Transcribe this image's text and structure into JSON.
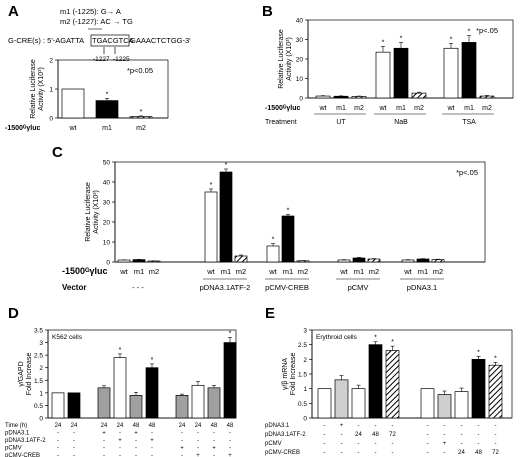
{
  "chart_data": [
    {
      "panel": "A",
      "type": "bar",
      "sequence": {
        "mut_m1": "m1 (-1225): G→ A",
        "mut_m2": "m2 (-1227): AC → TG",
        "seq_prefix": "G-CRE(s) : 5'-AGATTA",
        "seq_box": "TGACGTCA",
        "seq_suffix": "GAAACTCTGG-3'",
        "pos1": "-1227",
        "pos2": "-1225"
      },
      "ylabel": "Relative Luciferase\nActivity (X10³)",
      "ylim": [
        0,
        2
      ],
      "yticks": [
        0,
        1,
        2
      ],
      "sig": "*p<0.05",
      "row_label": "-1500ᴳγluc",
      "categories": [
        "wt",
        "m1",
        "m2"
      ],
      "values": [
        1.0,
        0.6,
        0.05
      ],
      "errors": [
        0,
        0.08,
        0.02
      ],
      "styles": [
        "white",
        "black",
        "hatch"
      ],
      "stars": [
        false,
        true,
        true
      ]
    },
    {
      "panel": "B",
      "type": "bar",
      "ylabel": "Relative Luciferase\nActivity (X10³)",
      "ylim": [
        0,
        40
      ],
      "yticks": [
        0,
        10,
        20,
        30,
        40
      ],
      "sig": "*p<.05",
      "row_label": "-1500ᴳγluc",
      "row2_label": "Treatment",
      "groups": [
        {
          "name": "UT",
          "categories": [
            "wt",
            "m1",
            "m2"
          ],
          "values": [
            1.0,
            0.9,
            0.8
          ],
          "errors": [
            0.2,
            0.2,
            0.2
          ],
          "stars": [
            false,
            false,
            false
          ]
        },
        {
          "name": "NaB",
          "categories": [
            "wt",
            "m1",
            "m2"
          ],
          "values": [
            23.5,
            25.5,
            2.5
          ],
          "errors": [
            3,
            3,
            0.5
          ],
          "stars": [
            true,
            true,
            false
          ]
        },
        {
          "name": "TSA",
          "categories": [
            "wt",
            "m1",
            "m2"
          ],
          "values": [
            25.5,
            28.5,
            1.0
          ],
          "errors": [
            2.5,
            3.5,
            0.3
          ],
          "stars": [
            true,
            true,
            false
          ]
        }
      ],
      "styles": [
        "white",
        "black",
        "hatch"
      ]
    },
    {
      "panel": "C",
      "type": "bar",
      "ylabel": "Relative Luciferase\nActivity (X10³)",
      "ylim": [
        0,
        50
      ],
      "yticks": [
        0,
        10,
        20,
        30,
        40,
        50
      ],
      "sig": "*p<.05",
      "row_label": "-1500ᴳγluc",
      "row2_label": "Vector",
      "groups": [
        {
          "name": "-   -   -",
          "categories": [
            "wt",
            "m1",
            "m2"
          ],
          "values": [
            1.0,
            1.2,
            0.5
          ],
          "errors": [
            0.1,
            0.1,
            0.1
          ],
          "stars": [
            false,
            false,
            false
          ]
        },
        {
          "name": "pDNA3.1ATF-2",
          "categories": [
            "wt",
            "m1",
            "m2"
          ],
          "values": [
            35,
            45,
            3
          ],
          "errors": [
            1.5,
            1.5,
            0.5
          ],
          "stars": [
            true,
            true,
            false
          ]
        },
        {
          "name": "pCMV-CREB",
          "categories": [
            "wt",
            "m1",
            "m2"
          ],
          "values": [
            8,
            23,
            0.6
          ],
          "errors": [
            1.2,
            0.8,
            0.1
          ],
          "stars": [
            true,
            true,
            false
          ]
        },
        {
          "name": "pCMV",
          "categories": [
            "wt",
            "m1",
            "m2"
          ],
          "values": [
            1.0,
            2.0,
            1.5
          ],
          "errors": [
            0.2,
            0.3,
            0.2
          ],
          "stars": [
            false,
            false,
            false
          ]
        },
        {
          "name": "pDNA3.1",
          "categories": [
            "wt",
            "m1",
            "m2"
          ],
          "values": [
            1.0,
            1.5,
            1.2
          ],
          "errors": [
            0.2,
            0.2,
            0.2
          ],
          "stars": [
            false,
            false,
            false
          ]
        }
      ],
      "styles": [
        "white",
        "black",
        "hatch"
      ]
    },
    {
      "panel": "D",
      "type": "bar",
      "ylabel": "γ/GAPD\nFold Increase",
      "ylim": [
        0,
        3.5
      ],
      "yticks": [
        0,
        0.5,
        1,
        1.5,
        2,
        2.5,
        3,
        3.5
      ],
      "inset": "K562 cells",
      "bars": [
        {
          "value": 1.0,
          "error": 0,
          "fill": "white",
          "star": false
        },
        {
          "value": 1.0,
          "error": 0,
          "fill": "black",
          "star": false
        },
        {
          "value": 1.2,
          "error": 0.08,
          "fill": "gray",
          "star": false
        },
        {
          "value": 2.4,
          "error": 0.15,
          "fill": "white",
          "star": true
        },
        {
          "value": 0.9,
          "error": 0.12,
          "fill": "gray",
          "star": false
        },
        {
          "value": 2.0,
          "error": 0.15,
          "fill": "black",
          "star": true
        },
        {
          "value": 0.9,
          "error": 0.05,
          "fill": "gray",
          "star": false
        },
        {
          "value": 1.3,
          "error": 0.15,
          "fill": "white",
          "star": false
        },
        {
          "value": 1.2,
          "error": 0.1,
          "fill": "gray",
          "star": false
        },
        {
          "value": 3.0,
          "error": 0.2,
          "fill": "black",
          "star": true
        }
      ],
      "bar_groups": [
        2,
        4,
        4
      ],
      "rows": [
        {
          "label": "Time (h)",
          "cells": [
            "24",
            "24",
            "24",
            "24",
            "48",
            "48",
            "24",
            "24",
            "48",
            "48"
          ]
        },
        {
          "label": "pDNA3.1",
          "cells": [
            "-",
            "-",
            "+",
            "-",
            "+",
            "-",
            "-",
            "-",
            "-",
            "-"
          ]
        },
        {
          "label": "pDNA3.1ATF-2",
          "cells": [
            "-",
            "-",
            "-",
            "+",
            "-",
            "+",
            "-",
            "-",
            "-",
            "-"
          ]
        },
        {
          "label": "pCMV",
          "cells": [
            "-",
            "-",
            "-",
            "-",
            "-",
            "-",
            "+",
            "-",
            "+",
            "-"
          ]
        },
        {
          "label": "pCMV-CREB",
          "cells": [
            "-",
            "-",
            "-",
            "-",
            "-",
            "-",
            "-",
            "+",
            "-",
            "+"
          ]
        }
      ]
    },
    {
      "panel": "E",
      "type": "bar",
      "ylabel": "γ/β mRNA\nFold Increase",
      "ylim": [
        0,
        3
      ],
      "yticks": [
        0,
        0.5,
        1,
        1.5,
        2,
        2.5,
        3
      ],
      "inset": "Erythroid cells",
      "bars": [
        {
          "value": 1.0,
          "error": 0,
          "fill": "white",
          "star": false
        },
        {
          "value": 1.3,
          "error": 0.15,
          "fill": "lightgray",
          "star": false
        },
        {
          "value": 1.0,
          "error": 0.12,
          "fill": "white",
          "star": false
        },
        {
          "value": 2.5,
          "error": 0.1,
          "fill": "black",
          "star": true
        },
        {
          "value": 2.3,
          "error": 0.15,
          "fill": "hatch",
          "star": true
        },
        {
          "value": 1.0,
          "error": 0,
          "fill": "white",
          "star": false
        },
        {
          "value": 0.8,
          "error": 0.12,
          "fill": "lightgray",
          "star": false
        },
        {
          "value": 0.9,
          "error": 0.12,
          "fill": "white",
          "star": false
        },
        {
          "value": 2.0,
          "error": 0.1,
          "fill": "black",
          "star": true
        },
        {
          "value": 1.8,
          "error": 0.1,
          "fill": "hatch",
          "star": true
        }
      ],
      "bar_groups": [
        5,
        5
      ],
      "rows": [
        {
          "label": "pDNA3.1",
          "cells": [
            "-",
            "+",
            "-",
            "-",
            "-",
            "-",
            "-",
            "-",
            "-",
            "-"
          ]
        },
        {
          "label": "pDNA3.1ATF-2",
          "cells": [
            "-",
            "-",
            "24",
            "48",
            "72",
            "-",
            "-",
            "-",
            "-",
            "-"
          ]
        },
        {
          "label": "pCMV",
          "cells": [
            "-",
            "-",
            "-",
            "-",
            "-",
            "-",
            "+",
            "-",
            "-",
            "-"
          ]
        },
        {
          "label": "pCMV-CREB",
          "cells": [
            "-",
            "-",
            "-",
            "-",
            "-",
            "-",
            "-",
            "24",
            "48",
            "72"
          ]
        }
      ]
    }
  ],
  "colors": {
    "black": "#000000",
    "gray": "#a0a0a0",
    "lightgray": "#cfcfcf",
    "white": "#ffffff"
  }
}
